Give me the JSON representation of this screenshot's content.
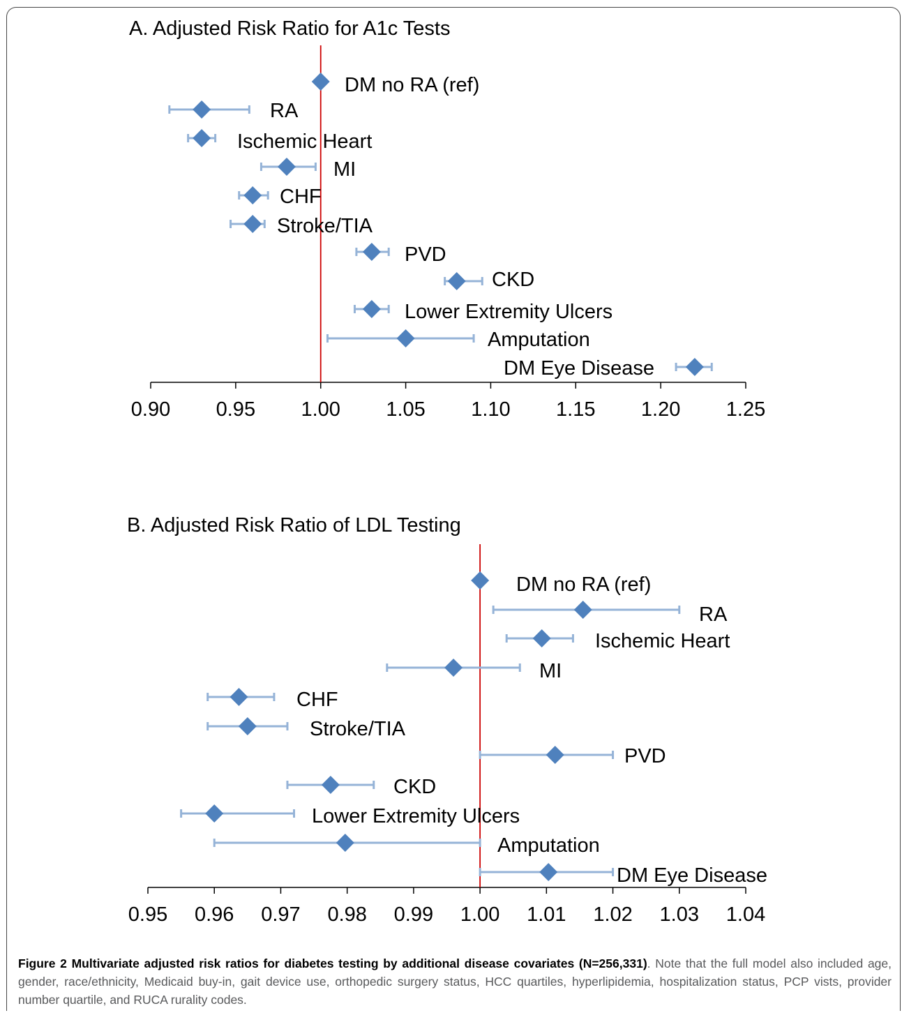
{
  "chart_data": [
    {
      "type": "scatter",
      "subtype": "forest-plot",
      "title": "A. Adjusted Risk Ratio for A1c Tests",
      "xlim": [
        0.9,
        1.25
      ],
      "xticks": [
        "0.90",
        "0.95",
        "1.00",
        "1.05",
        "1.10",
        "1.15",
        "1.20",
        "1.25"
      ],
      "xtick_values": [
        0.9,
        0.95,
        1.0,
        1.05,
        1.1,
        1.15,
        1.2,
        1.25
      ],
      "reference_line": 1.0,
      "marker_color": "#4f81bd",
      "errorbar_color": "#95b3d7",
      "reference_color": "#cc0000",
      "points": [
        {
          "label": "DM no RA (ref)",
          "estimate": 1.0,
          "lower": 1.0,
          "upper": 1.0
        },
        {
          "label": "RA",
          "estimate": 0.93,
          "lower": 0.911,
          "upper": 0.958
        },
        {
          "label": "Ischemic Heart",
          "estimate": 0.93,
          "lower": 0.922,
          "upper": 0.938
        },
        {
          "label": "MI",
          "estimate": 0.98,
          "lower": 0.965,
          "upper": 0.997
        },
        {
          "label": "CHF",
          "estimate": 0.96,
          "lower": 0.952,
          "upper": 0.969
        },
        {
          "label": "Stroke/TIA",
          "estimate": 0.96,
          "lower": 0.947,
          "upper": 0.967
        },
        {
          "label": "PVD",
          "estimate": 1.03,
          "lower": 1.021,
          "upper": 1.04
        },
        {
          "label": "CKD",
          "estimate": 1.08,
          "lower": 1.073,
          "upper": 1.095
        },
        {
          "label": "Lower Extremity Ulcers",
          "estimate": 1.03,
          "lower": 1.02,
          "upper": 1.04
        },
        {
          "label": "Amputation",
          "estimate": 1.05,
          "lower": 1.004,
          "upper": 1.09
        },
        {
          "label": "DM Eye Disease",
          "estimate": 1.22,
          "lower": 1.209,
          "upper": 1.23
        }
      ]
    },
    {
      "type": "scatter",
      "subtype": "forest-plot",
      "title": "B. Adjusted Risk Ratio of LDL Testing",
      "xlim": [
        0.95,
        1.04
      ],
      "xticks": [
        "0.95",
        "0.96",
        "0.97",
        "0.98",
        "0.99",
        "1.00",
        "1.01",
        "1.02",
        "1.03",
        "1.04"
      ],
      "xtick_values": [
        0.95,
        0.96,
        0.97,
        0.98,
        0.99,
        1.0,
        1.01,
        1.02,
        1.03,
        1.04
      ],
      "reference_line": 1.0,
      "marker_color": "#4f81bd",
      "errorbar_color": "#95b3d7",
      "reference_color": "#cc0000",
      "points": [
        {
          "label": "DM no RA (ref)",
          "estimate": 1.0,
          "lower": 1.0,
          "upper": 1.0
        },
        {
          "label": "RA",
          "estimate": 1.0155,
          "lower": 1.002,
          "upper": 1.03
        },
        {
          "label": "Ischemic Heart",
          "estimate": 1.0093,
          "lower": 1.004,
          "upper": 1.014
        },
        {
          "label": "MI",
          "estimate": 0.996,
          "lower": 0.986,
          "upper": 1.006
        },
        {
          "label": "CHF",
          "estimate": 0.9637,
          "lower": 0.959,
          "upper": 0.969
        },
        {
          "label": "Stroke/TIA",
          "estimate": 0.965,
          "lower": 0.959,
          "upper": 0.971
        },
        {
          "label": "PVD",
          "estimate": 1.0113,
          "lower": 1.0,
          "upper": 1.02
        },
        {
          "label": "CKD",
          "estimate": 0.9775,
          "lower": 0.971,
          "upper": 0.984
        },
        {
          "label": "Lower Extremity Ulcers",
          "estimate": 0.96,
          "lower": 0.955,
          "upper": 0.972
        },
        {
          "label": "Amputation",
          "estimate": 0.9797,
          "lower": 0.96,
          "upper": 1.0
        },
        {
          "label": "DM Eye Disease",
          "estimate": 1.0103,
          "lower": 1.0,
          "upper": 1.02
        }
      ]
    }
  ],
  "caption": {
    "bold": "Figure 2 Multivariate adjusted risk ratios for diabetes testing by additional disease covariates (N=256,331)",
    "rest": ". Note that the full model also included age, gender, race/ethnicity, Medicaid buy-in, gait device use, orthopedic surgery status, HCC quartiles, hyperlipidemia, hospitalization status, PCP vists, provider number quartile, and RUCA rurality codes."
  }
}
